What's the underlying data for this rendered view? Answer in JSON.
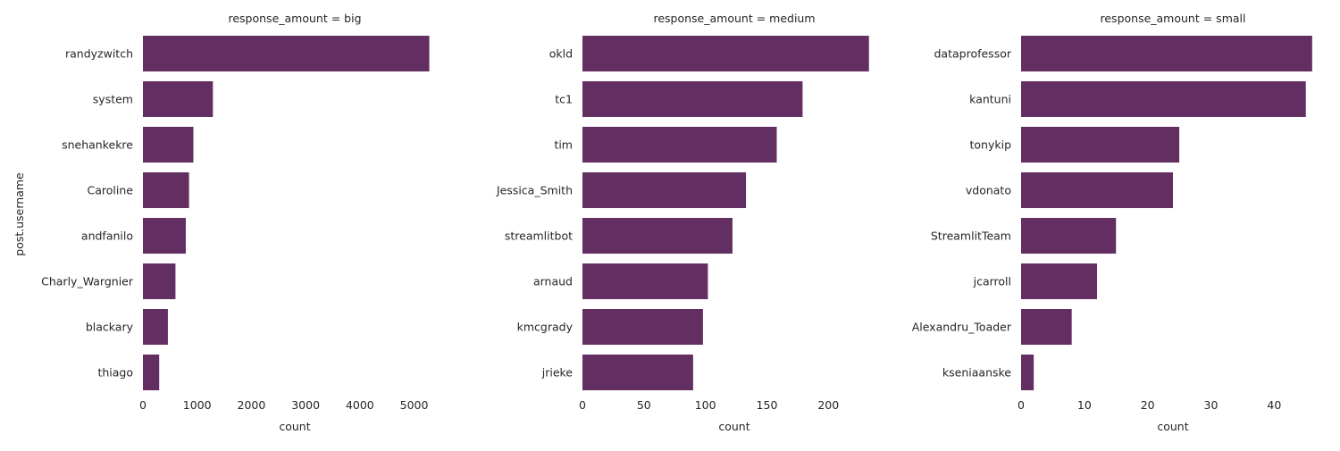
{
  "chart_data": [
    {
      "type": "bar",
      "orientation": "horizontal",
      "title": "response_amount = big",
      "xlabel": "count",
      "ylabel": "post.username",
      "xlim": [
        0,
        5600
      ],
      "xticks": [
        0,
        1000,
        2000,
        3000,
        4000,
        5000
      ],
      "categories": [
        "randyzwitch",
        "system",
        "snehankekre",
        "Caroline",
        "andfanilo",
        "Charly_Wargnier",
        "blackary",
        "thiago"
      ],
      "values": [
        5280,
        1290,
        930,
        850,
        790,
        600,
        460,
        300
      ],
      "bar_color": "#632e62",
      "grid": false
    },
    {
      "type": "bar",
      "orientation": "horizontal",
      "title": "response_amount = medium",
      "xlabel": "count",
      "ylabel": "",
      "xlim": [
        0,
        247
      ],
      "xticks": [
        0,
        50,
        100,
        150,
        200
      ],
      "categories": [
        "okld",
        "tc1",
        "tim",
        "Jessica_Smith",
        "streamlitbot",
        "arnaud",
        "kmcgrady",
        "jrieke"
      ],
      "values": [
        233,
        179,
        158,
        133,
        122,
        102,
        98,
        90
      ],
      "bar_color": "#632e62",
      "grid": false
    },
    {
      "type": "bar",
      "orientation": "horizontal",
      "title": "response_amount = small",
      "xlabel": "count",
      "ylabel": "",
      "xlim": [
        0,
        48
      ],
      "xticks": [
        0,
        10,
        20,
        30,
        40
      ],
      "categories": [
        "dataprofessor",
        "kantuni",
        "tonykip",
        "vdonato",
        "StreamlitTeam",
        "jcarroll",
        "Alexandru_Toader",
        "kseniaanske"
      ],
      "values": [
        46,
        45,
        25,
        24,
        15,
        12,
        8,
        2
      ],
      "bar_color": "#632e62",
      "grid": false
    }
  ]
}
